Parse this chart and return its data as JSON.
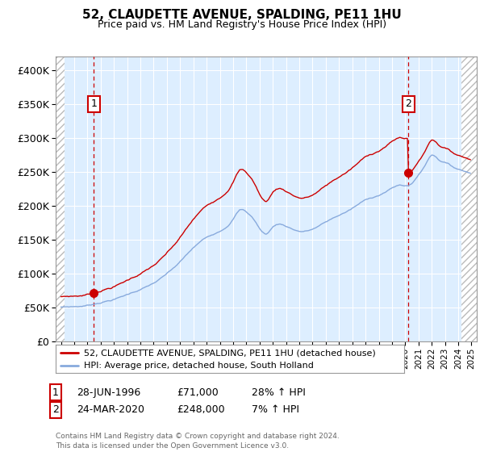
{
  "title": "52, CLAUDETTE AVENUE, SPALDING, PE11 1HU",
  "subtitle": "Price paid vs. HM Land Registry's House Price Index (HPI)",
  "legend_line1": "52, CLAUDETTE AVENUE, SPALDING, PE11 1HU (detached house)",
  "legend_line2": "HPI: Average price, detached house, South Holland",
  "annotation1_label": "1",
  "annotation1_date": "28-JUN-1996",
  "annotation1_price": "£71,000",
  "annotation1_hpi": "28% ↑ HPI",
  "annotation2_label": "2",
  "annotation2_date": "24-MAR-2020",
  "annotation2_price": "£248,000",
  "annotation2_hpi": "7% ↑ HPI",
  "footer": "Contains HM Land Registry data © Crown copyright and database right 2024.\nThis data is licensed under the Open Government Licence v3.0.",
  "price_line_color": "#cc0000",
  "hpi_line_color": "#88aadd",
  "plot_bg_color": "#ddeeff",
  "ylim": [
    0,
    420000
  ],
  "ytick_values": [
    0,
    50000,
    100000,
    150000,
    200000,
    250000,
    300000,
    350000,
    400000
  ],
  "ytick_labels": [
    "£0",
    "£50K",
    "£100K",
    "£150K",
    "£200K",
    "£250K",
    "£300K",
    "£350K",
    "£400K"
  ],
  "xlim_left": 1993.6,
  "xlim_right": 2025.4,
  "sale1_x": 1996.49,
  "sale1_y": 71000,
  "sale2_x": 2020.23,
  "sale2_y": 248000,
  "hatch_left_end": 1994.25,
  "hatch_right_start": 2024.25
}
